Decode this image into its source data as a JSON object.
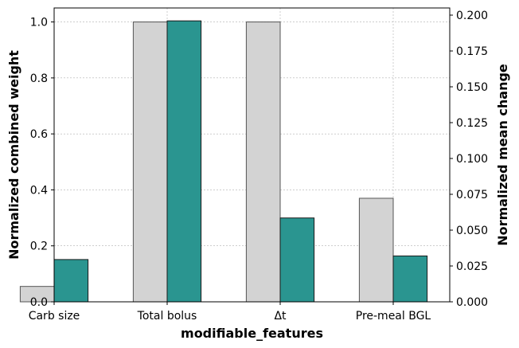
{
  "chart_data": {
    "type": "bar",
    "categories": [
      "Carb size",
      "Total bolus",
      "Δt",
      "Pre-meal BGL"
    ],
    "xlabel": "modifiable_features",
    "ylabel_left": "Normalized combined weight",
    "ylabel_right": "Normalized mean change",
    "ylim_left": [
      0,
      1.05
    ],
    "ylim_right": [
      0,
      0.205
    ],
    "yticks_left": [
      "0.0",
      "0.2",
      "0.4",
      "0.6",
      "0.8",
      "1.0"
    ],
    "yticks_right": [
      "0.000",
      "0.025",
      "0.050",
      "0.075",
      "0.100",
      "0.125",
      "0.150",
      "0.175",
      "0.200"
    ],
    "grid": true,
    "series": [
      {
        "axis": "left",
        "color": "#d3d3d3",
        "values": [
          0.055,
          1.0,
          1.0,
          0.37
        ]
      },
      {
        "axis": "right",
        "color": "#2a9590",
        "values": [
          0.0295,
          0.196,
          0.0585,
          0.032
        ]
      }
    ]
  }
}
